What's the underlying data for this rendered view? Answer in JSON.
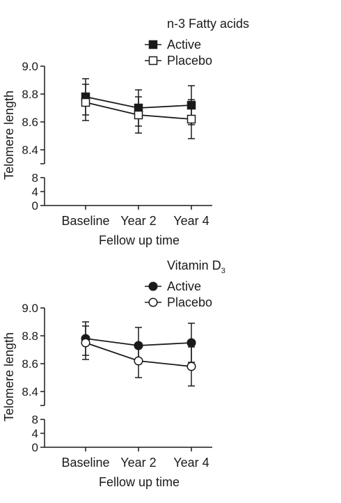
{
  "chart_data": [
    {
      "type": "line",
      "title": "n-3 Fatty acids",
      "xlabel": "Fellow up time",
      "ylabel": "Telomere length",
      "categories": [
        "Baseline",
        "Year 2",
        "Year 4"
      ],
      "ylim": [
        8.3,
        9.0
      ],
      "y_ticks": [
        "9.0",
        "8.8",
        "8.6",
        "8.4"
      ],
      "y_break_ticks": [
        "8",
        "4",
        "0"
      ],
      "grid": false,
      "legend_position": "top-right",
      "series": [
        {
          "name": "Active",
          "marker": "filled-square",
          "values": [
            8.78,
            8.7,
            8.72
          ],
          "errors": [
            0.13,
            0.13,
            0.14
          ]
        },
        {
          "name": "Placebo",
          "marker": "open-square",
          "values": [
            8.74,
            8.65,
            8.62
          ],
          "errors": [
            0.13,
            0.13,
            0.14
          ]
        }
      ]
    },
    {
      "type": "line",
      "title": "Vitamin D",
      "title_subscript": "3",
      "xlabel": "Fellow up time",
      "ylabel": "Telomere length",
      "categories": [
        "Baseline",
        "Year 2",
        "Year 4"
      ],
      "ylim": [
        8.3,
        9.0
      ],
      "y_ticks": [
        "9.0",
        "8.8",
        "8.6",
        "8.4"
      ],
      "y_break_ticks": [
        "8",
        "4",
        "0"
      ],
      "grid": false,
      "legend_position": "top-right",
      "series": [
        {
          "name": "Active",
          "marker": "filled-circle",
          "values": [
            8.78,
            8.73,
            8.75
          ],
          "errors": [
            0.12,
            0.13,
            0.14
          ]
        },
        {
          "name": "Placebo",
          "marker": "open-circle",
          "values": [
            8.75,
            8.62,
            8.58
          ],
          "errors": [
            0.12,
            0.12,
            0.14
          ]
        }
      ]
    }
  ]
}
